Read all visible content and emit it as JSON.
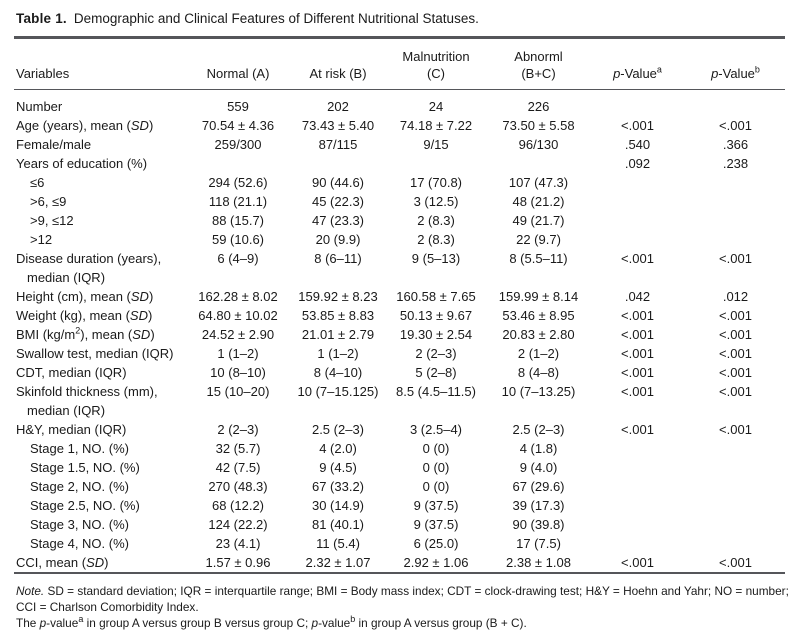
{
  "colors": {
    "background": "#ffffff",
    "text": "#1a1a1a",
    "rule": "#55565a"
  },
  "title": {
    "label": "Table 1.",
    "text": "Demographic and Clinical Features of Different Nutritional Statuses."
  },
  "table": {
    "columns": [
      {
        "label": "Variables",
        "align": "left"
      },
      {
        "label": "Normal (A)"
      },
      {
        "label": "At risk (B)"
      },
      {
        "label": "Malnutrition\n(C)"
      },
      {
        "label": "Abnorml\n(B+C)"
      },
      {
        "label": "*p*-Value^a"
      },
      {
        "label": "*p*-Value^b"
      }
    ],
    "rows": [
      {
        "label": "Number",
        "indent": 0,
        "cells": [
          "559",
          "202",
          "24",
          "226",
          "",
          ""
        ]
      },
      {
        "label": "Age (years), mean (*SD*)",
        "indent": 0,
        "cells": [
          "70.54 ± 4.36",
          "73.43 ± 5.40",
          "74.18 ± 7.22",
          "73.50 ± 5.58",
          "<.001",
          "<.001"
        ]
      },
      {
        "label": "Female/male",
        "indent": 0,
        "cells": [
          "259/300",
          "87/115",
          "9/15",
          "96/130",
          ".540",
          ".366"
        ]
      },
      {
        "label": "Years of education (%)",
        "indent": 0,
        "cells": [
          "",
          "",
          "",
          "",
          ".092",
          ".238"
        ]
      },
      {
        "label": "≤6",
        "indent": 1,
        "cells": [
          "294 (52.6)",
          "90 (44.6)",
          "17 (70.8)",
          "107 (47.3)",
          "",
          ""
        ]
      },
      {
        "label": ">6, ≤9",
        "indent": 1,
        "cells": [
          "118 (21.1)",
          "45 (22.3)",
          "3 (12.5)",
          "48 (21.2)",
          "",
          ""
        ]
      },
      {
        "label": ">9, ≤12",
        "indent": 1,
        "cells": [
          "88 (15.7)",
          "47 (23.3)",
          "2 (8.3)",
          "49 (21.7)",
          "",
          ""
        ]
      },
      {
        "label": ">12",
        "indent": 1,
        "cells": [
          "59 (10.6)",
          "20 (9.9)",
          "2 (8.3)",
          "22 (9.7)",
          "",
          ""
        ]
      },
      {
        "label": "Disease duration (years),\nmedian (IQR)",
        "indent": 0,
        "cells": [
          "6 (4–9)",
          "8 (6–11)",
          "9 (5–13)",
          "8 (5.5–11)",
          "<.001",
          "<.001"
        ]
      },
      {
        "label": "Height (cm), mean (*SD*)",
        "indent": 0,
        "cells": [
          "162.28 ± 8.02",
          "159.92 ± 8.23",
          "160.58 ± 7.65",
          "159.99 ± 8.14",
          ".042",
          ".012"
        ]
      },
      {
        "label": "Weight (kg), mean (*SD*)",
        "indent": 0,
        "cells": [
          "64.80 ± 10.02",
          "53.85 ± 8.83",
          "50.13 ± 9.67",
          "53.46 ± 8.95",
          "<.001",
          "<.001"
        ]
      },
      {
        "label": "BMI (kg/m^2), mean (*SD*)",
        "indent": 0,
        "cells": [
          "24.52 ± 2.90",
          "21.01 ± 2.79",
          "19.30 ± 2.54",
          "20.83 ± 2.80",
          "<.001",
          "<.001"
        ]
      },
      {
        "label": "Swallow test, median (IQR)",
        "indent": 0,
        "cells": [
          "1 (1–2)",
          "1 (1–2)",
          "2 (2–3)",
          "2 (1–2)",
          "<.001",
          "<.001"
        ]
      },
      {
        "label": "CDT, median (IQR)",
        "indent": 0,
        "cells": [
          "10 (8–10)",
          "8 (4–10)",
          "5 (2–8)",
          "8 (4–8)",
          "<.001",
          "<.001"
        ]
      },
      {
        "label": "Skinfold thickness (mm),\nmedian (IQR)",
        "indent": 0,
        "cells": [
          "15 (10–20)",
          "10 (7–15.125)",
          "8.5 (4.5–11.5)",
          "10 (7–13.25)",
          "<.001",
          "<.001"
        ]
      },
      {
        "label": "H&Y, median (IQR)",
        "indent": 0,
        "cells": [
          "2 (2–3)",
          "2.5 (2–3)",
          "3 (2.5–4)",
          "2.5 (2–3)",
          "<.001",
          "<.001"
        ]
      },
      {
        "label": "Stage 1, NO. (%)",
        "indent": 1,
        "cells": [
          "32 (5.7)",
          "4 (2.0)",
          "0 (0)",
          "4 (1.8)",
          "",
          ""
        ]
      },
      {
        "label": "Stage 1.5, NO. (%)",
        "indent": 1,
        "cells": [
          "42 (7.5)",
          "9 (4.5)",
          "0 (0)",
          "9 (4.0)",
          "",
          ""
        ]
      },
      {
        "label": "Stage 2, NO. (%)",
        "indent": 1,
        "cells": [
          "270 (48.3)",
          "67 (33.2)",
          "0 (0)",
          "67 (29.6)",
          "",
          ""
        ]
      },
      {
        "label": "Stage 2.5, NO. (%)",
        "indent": 1,
        "cells": [
          "68 (12.2)",
          "30 (14.9)",
          "9 (37.5)",
          "39 (17.3)",
          "",
          ""
        ]
      },
      {
        "label": "Stage 3, NO. (%)",
        "indent": 1,
        "cells": [
          "124 (22.2)",
          "81 (40.1)",
          "9 (37.5)",
          "90 (39.8)",
          "",
          ""
        ]
      },
      {
        "label": "Stage 4, NO. (%)",
        "indent": 1,
        "cells": [
          "23 (4.1)",
          "11 (5.4)",
          "6 (25.0)",
          "17 (7.5)",
          "",
          ""
        ]
      },
      {
        "label": "CCI, mean (*SD*)",
        "indent": 0,
        "cells": [
          "1.57 ± 0.96",
          "2.32 ± 1.07",
          "2.92 ± 1.06",
          "2.38 ± 1.08",
          "<.001",
          "<.001"
        ]
      }
    ]
  },
  "footnotes": [
    "*Note.* SD = standard deviation; IQR = interquartile range; BMI = Body mass index; CDT = clock-drawing test; H&Y = Hoehn and Yahr; NO = number; CCI = Charlson Comorbidity Index.",
    "The *p*-value^a in group A versus group B versus group C; *p*-value^b in group A versus group (B + C)."
  ]
}
